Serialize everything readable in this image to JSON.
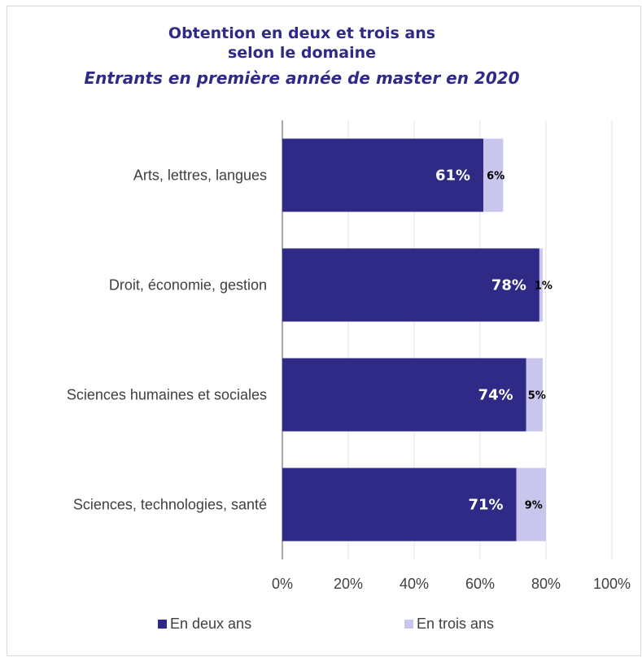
{
  "chart_data": {
    "type": "bar",
    "orientation": "horizontal",
    "stacked": true,
    "title_line1": "Obtention en deux et trois ans",
    "title_line2": "selon le domaine",
    "subtitle": "Entrants en première année de master en 2020",
    "categories": [
      "Arts, lettres, langues",
      "Droit, économie, gestion",
      "Sciences humaines et sociales",
      "Sciences, technologies, santé"
    ],
    "series": [
      {
        "name": "En deux ans",
        "color": "#2e2a85",
        "values": [
          61,
          78,
          74,
          71
        ],
        "labels": [
          "61%",
          "78%",
          "74%",
          "71%"
        ]
      },
      {
        "name": "En trois ans",
        "color": "#c9c6ee",
        "values": [
          6,
          1,
          5,
          9
        ],
        "labels": [
          "6%",
          "1%",
          "5%",
          "9%"
        ]
      }
    ],
    "xlim": [
      0,
      100
    ],
    "xticks": [
      "0%",
      "20%",
      "40%",
      "60%",
      "80%",
      "100%"
    ],
    "grid": true,
    "legend_position": "bottom"
  }
}
